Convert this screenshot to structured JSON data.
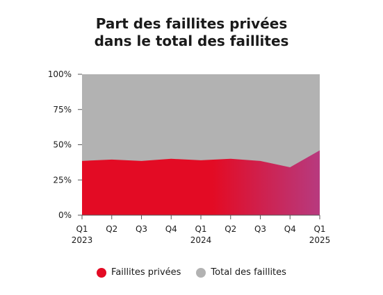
{
  "title_line1": "Part des faillites privées",
  "title_line2": "dans le total des faillites",
  "chart_data": {
    "type": "area",
    "title": "Part des faillites privées dans le total des faillites",
    "categories": [
      "Q1 2023",
      "Q2",
      "Q3",
      "Q4",
      "Q1 2024",
      "Q2",
      "Q3",
      "Q4",
      "Q1 2025"
    ],
    "tick_labels": [
      [
        "Q1",
        "2023"
      ],
      [
        "Q2",
        ""
      ],
      [
        "Q3",
        ""
      ],
      [
        "Q4",
        ""
      ],
      [
        "Q1",
        "2024"
      ],
      [
        "Q2",
        ""
      ],
      [
        "Q3",
        ""
      ],
      [
        "Q4",
        ""
      ],
      [
        "Q1",
        "2025"
      ]
    ],
    "y_tick_labels": [
      "0%",
      "25%",
      "50%",
      "75%",
      "100%"
    ],
    "ylim": [
      0,
      100
    ],
    "series": [
      {
        "name": "Faillites privées",
        "values": [
          38.5,
          39.5,
          38.5,
          40,
          39,
          40,
          38.5,
          34,
          46
        ],
        "color_start": "#e30b24",
        "color_end": "#b73a7f"
      },
      {
        "name": "Total des faillites",
        "values": [
          100,
          100,
          100,
          100,
          100,
          100,
          100,
          100,
          100
        ],
        "color": "#b2b2b2"
      }
    ],
    "legend_position": "bottom-center",
    "grid": false
  }
}
